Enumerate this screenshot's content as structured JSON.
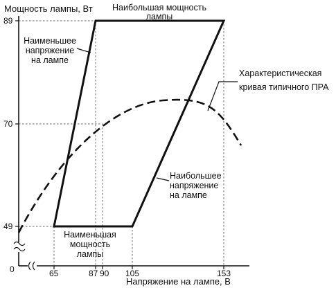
{
  "axes": {
    "y_title": "Мощность лампы, Вт",
    "x_title": "Напряжение на лампе, В",
    "origin": "0",
    "y_ticks": [
      "89",
      "70",
      "49"
    ],
    "x_ticks": [
      "65",
      "87",
      "90",
      "105",
      "153"
    ]
  },
  "labels": {
    "top_1": "Наибольшая мощность",
    "top_2": "лампы",
    "minv_1": "Наименьшее",
    "minv_2": "напряжение",
    "minv_3": "на лампе",
    "curve_1": "Характеристическая",
    "curve_2": "кривая типичного ПРА",
    "maxv_1": "Наибольшее",
    "maxv_2": "напряжение",
    "maxv_3": "на лампе",
    "minp_1": "Наименьшая",
    "minp_2": "мощность",
    "minp_3": "лампы"
  },
  "chart_data": {
    "type": "line",
    "xlabel": "Напряжение на лампе, В",
    "ylabel": "Мощность лампы, Вт",
    "operating_area": {
      "vertices": [
        [
          65,
          49
        ],
        [
          87,
          89
        ],
        [
          153,
          89
        ],
        [
          105,
          49
        ]
      ],
      "min_power_W": 49,
      "max_power_W": 89,
      "min_voltage_V": [
        65,
        87
      ],
      "max_voltage_V": [
        105,
        153
      ]
    },
    "ballast_curve": {
      "x": [
        65,
        75,
        87,
        90,
        100,
        110,
        120,
        130,
        140,
        150,
        153
      ],
      "y": [
        48,
        58,
        69,
        70,
        75,
        78,
        79,
        78,
        74,
        67,
        64
      ]
    },
    "reference_values": {
      "power_W": [
        89,
        70,
        49
      ],
      "voltage_V": [
        65,
        87,
        90,
        105,
        153
      ]
    },
    "axis_break": {
      "x": true,
      "y": true
    }
  }
}
